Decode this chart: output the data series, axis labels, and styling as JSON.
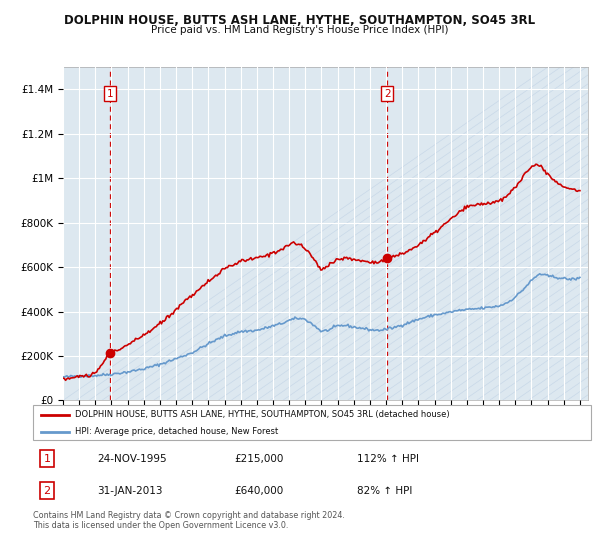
{
  "title": "DOLPHIN HOUSE, BUTTS ASH LANE, HYTHE, SOUTHAMPTON, SO45 3RL",
  "subtitle": "Price paid vs. HM Land Registry's House Price Index (HPI)",
  "legend_line1": "DOLPHIN HOUSE, BUTTS ASH LANE, HYTHE, SOUTHAMPTON, SO45 3RL (detached house)",
  "legend_line2": "HPI: Average price, detached house, New Forest",
  "sale1_label": "1",
  "sale1_date": "24-NOV-1995",
  "sale1_price": "£215,000",
  "sale1_hpi": "112% ↑ HPI",
  "sale2_label": "2",
  "sale2_date": "31-JAN-2013",
  "sale2_price": "£640,000",
  "sale2_hpi": "82% ↑ HPI",
  "footer": "Contains HM Land Registry data © Crown copyright and database right 2024.\nThis data is licensed under the Open Government Licence v3.0.",
  "red_color": "#cc0000",
  "blue_color": "#6699cc",
  "bg_color": "#ffffff",
  "plot_bg": "#dde8f0",
  "grid_color": "#ffffff",
  "hatch_color": "#c8d8e8",
  "ylim": [
    0,
    1500000
  ],
  "yticks": [
    0,
    200000,
    400000,
    600000,
    800000,
    1000000,
    1200000,
    1400000
  ],
  "ytick_labels": [
    "£0",
    "£200K",
    "£400K",
    "£600K",
    "£800K",
    "£1M",
    "£1.2M",
    "£1.4M"
  ],
  "sale1_x": 1995.9,
  "sale1_y": 215000,
  "sale2_x": 2013.08,
  "sale2_y": 640000,
  "vline1_x": 1995.9,
  "vline2_x": 2013.08,
  "xlim_min": 1993.0,
  "xlim_max": 2025.5,
  "xtick_years": [
    1993,
    1994,
    1995,
    1996,
    1997,
    1998,
    1999,
    2000,
    2001,
    2002,
    2003,
    2004,
    2005,
    2006,
    2007,
    2008,
    2009,
    2010,
    2011,
    2012,
    2013,
    2014,
    2015,
    2016,
    2017,
    2018,
    2019,
    2020,
    2021,
    2022,
    2023,
    2024,
    2025
  ]
}
